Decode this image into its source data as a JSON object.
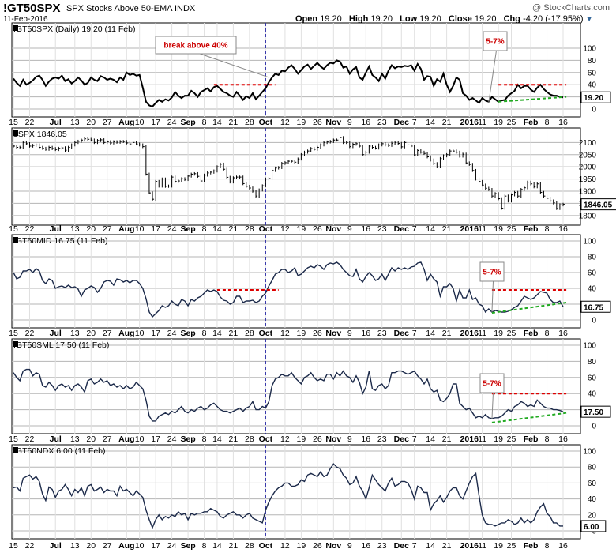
{
  "header": {
    "symbol": "!GT50SPX",
    "description": "SPX Stocks Above 50-EMA INDX",
    "date": "11-Feb-2016",
    "watermark": "@ StockCharts.com",
    "quote": {
      "open_label": "Open",
      "open": "19.20",
      "high_label": "High",
      "high": "19.20",
      "low_label": "Low",
      "low": "19.20",
      "close_label": "Close",
      "close": "19.20",
      "chg_label": "Chg",
      "chg": "-4.20 (-17.95%)"
    }
  },
  "x_labels": [
    {
      "t": "15",
      "i": 0
    },
    {
      "t": "22",
      "i": 5
    },
    {
      "t": "Jul",
      "i": 13,
      "b": true
    },
    {
      "t": "13",
      "i": 19
    },
    {
      "t": "20",
      "i": 24
    },
    {
      "t": "27",
      "i": 29
    },
    {
      "t": "Aug",
      "i": 35,
      "b": true
    },
    {
      "t": "10",
      "i": 39
    },
    {
      "t": "17",
      "i": 44
    },
    {
      "t": "24",
      "i": 49
    },
    {
      "t": "Sep",
      "i": 54,
      "b": true
    },
    {
      "t": "8",
      "i": 59
    },
    {
      "t": "14",
      "i": 63
    },
    {
      "t": "21",
      "i": 68
    },
    {
      "t": "28",
      "i": 73
    },
    {
      "t": "Oct",
      "i": 78,
      "b": true
    },
    {
      "t": "12",
      "i": 84
    },
    {
      "t": "19",
      "i": 89
    },
    {
      "t": "26",
      "i": 94
    },
    {
      "t": "Nov",
      "i": 99,
      "b": true
    },
    {
      "t": "9",
      "i": 104
    },
    {
      "t": "16",
      "i": 109
    },
    {
      "t": "23",
      "i": 114
    },
    {
      "t": "Dec",
      "i": 120,
      "b": true
    },
    {
      "t": "7",
      "i": 124
    },
    {
      "t": "14",
      "i": 129
    },
    {
      "t": "21",
      "i": 134
    },
    {
      "t": "2016",
      "i": 141,
      "b": true
    },
    {
      "t": "11",
      "i": 145
    },
    {
      "t": "19",
      "i": 150
    },
    {
      "t": "25",
      "i": 154
    },
    {
      "t": "Feb",
      "i": 160,
      "b": true
    },
    {
      "t": "8",
      "i": 165
    },
    {
      "t": "16",
      "i": 170
    }
  ],
  "marker_index": 78,
  "chart_data": [
    {
      "type": "line",
      "title": "!GT50SPX (Daily) 19.20 (11 Feb)",
      "ylim": [
        0,
        100
      ],
      "yticks": [
        0,
        20,
        40,
        60,
        80,
        100
      ],
      "last_value": "19.20",
      "annotations": [
        "break above 40%",
        "5-7%"
      ],
      "values": [
        50,
        43,
        38,
        48,
        40,
        43,
        47,
        53,
        55,
        48,
        38,
        45,
        50,
        52,
        50,
        55,
        46,
        49,
        42,
        46,
        52,
        47,
        40,
        43,
        52,
        48,
        46,
        54,
        52,
        48,
        50,
        48,
        44,
        52,
        48,
        60,
        56,
        58,
        55,
        56,
        35,
        12,
        6,
        4,
        10,
        15,
        12,
        16,
        14,
        19,
        28,
        22,
        18,
        22,
        22,
        30,
        26,
        20,
        28,
        31,
        34,
        29,
        36,
        38,
        33,
        28,
        26,
        22,
        20,
        28,
        22,
        15,
        21,
        18,
        26,
        16,
        22,
        28,
        34,
        44,
        52,
        58,
        56,
        63,
        62,
        68,
        72,
        66,
        58,
        64,
        70,
        73,
        66,
        71,
        76,
        70,
        66,
        72,
        76,
        75,
        80,
        78,
        68,
        70,
        58,
        65,
        69,
        52,
        48,
        60,
        70,
        56,
        52,
        46,
        58,
        50,
        63,
        72,
        67,
        70,
        69,
        71,
        70,
        72,
        63,
        74,
        66,
        48,
        54,
        53,
        38,
        49,
        45,
        58,
        40,
        28,
        38,
        52,
        48,
        26,
        22,
        15,
        18,
        14,
        10,
        18,
        14,
        12,
        20,
        16,
        12,
        14,
        15,
        22,
        26,
        30,
        40,
        34,
        38,
        38,
        32,
        28,
        35,
        40,
        33,
        28,
        24,
        22,
        22,
        20,
        19.2
      ]
    },
    {
      "type": "line",
      "title": "$SPX 1846.05",
      "ylim": [
        1780,
        2140
      ],
      "yticks": [
        1800,
        1850,
        1900,
        1950,
        2000,
        2050,
        2100
      ],
      "last_value": "1846.05",
      "values": [
        2085,
        2080,
        2080,
        2100,
        2095,
        2085,
        2088,
        2090,
        2080,
        2076,
        2072,
        2080,
        2075,
        2071,
        2076,
        2078,
        2068,
        2080,
        2090,
        2100,
        2105,
        2110,
        2115,
        2113,
        2110,
        2100,
        2108,
        2111,
        2100,
        2103,
        2098,
        2103,
        2101,
        2104,
        2104,
        2098,
        2094,
        2100,
        2094,
        2090,
        2083,
        1970,
        1893,
        1867,
        1940,
        1921,
        1950,
        1920,
        1921,
        1958,
        1940,
        1942,
        1951,
        1948,
        1962,
        1970,
        1972,
        1961,
        1942,
        1966,
        1975,
        1978,
        1983,
        2000,
        2011,
        1990,
        1957,
        1938,
        1955,
        1958,
        1958,
        1931,
        1920,
        1913,
        1900,
        1880,
        1905,
        1922,
        1950,
        1952,
        1985,
        1995,
        1997,
        2014,
        2017,
        2023,
        2023,
        2019,
        2032,
        2050,
        2060,
        2065,
        2075,
        2072,
        2080,
        2090,
        2100,
        2102,
        2104,
        2110,
        2110,
        2120,
        2100,
        2100,
        2083,
        2093,
        2095,
        2085,
        2050,
        2060,
        2085,
        2080,
        2077,
        2090,
        2095,
        2090,
        2088,
        2097,
        2100,
        2096,
        2082,
        2100,
        2090,
        2085,
        2049,
        2067,
        2060,
        2055,
        2041,
        2028,
        2013,
        2000,
        2034,
        2045,
        2050,
        2065,
        2065,
        2060,
        2044,
        2052,
        2016,
        2010,
        1985,
        1950,
        1940,
        1925,
        1912,
        1907,
        1880,
        1890,
        1869,
        1830,
        1880,
        1860,
        1885,
        1895,
        1880,
        1907,
        1914,
        1937,
        1930,
        1918,
        1930,
        1895,
        1880,
        1871,
        1860,
        1852,
        1829,
        1844,
        1846.05
      ]
    },
    {
      "type": "line",
      "title": "!GT50MID 16.75 (11 Feb)",
      "ylim": [
        0,
        100
      ],
      "yticks": [
        0,
        20,
        40,
        60,
        80,
        100
      ],
      "last_value": "16.75",
      "annotations": [
        "5-7%"
      ],
      "values": [
        60,
        52,
        54,
        62,
        62,
        64,
        60,
        65,
        62,
        50,
        46,
        52,
        50,
        40,
        42,
        43,
        41,
        44,
        41,
        42,
        39,
        30,
        38,
        40,
        43,
        41,
        35,
        40,
        48,
        50,
        49,
        44,
        52,
        51,
        48,
        50,
        47,
        50,
        50,
        46,
        40,
        27,
        10,
        4,
        8,
        12,
        18,
        16,
        18,
        24,
        20,
        18,
        26,
        24,
        18,
        26,
        24,
        28,
        30,
        34,
        38,
        36,
        38,
        36,
        29,
        25,
        24,
        20,
        22,
        30,
        30,
        22,
        24,
        24,
        25,
        22,
        24,
        30,
        34,
        43,
        50,
        58,
        60,
        64,
        64,
        60,
        62,
        66,
        56,
        58,
        62,
        66,
        68,
        66,
        70,
        68,
        64,
        70,
        72,
        71,
        73,
        70,
        64,
        60,
        56,
        55,
        64,
        52,
        48,
        55,
        60,
        56,
        50,
        52,
        58,
        50,
        58,
        66,
        62,
        66,
        64,
        66,
        64,
        67,
        68,
        72,
        73,
        64,
        50,
        58,
        52,
        48,
        30,
        42,
        42,
        46,
        40,
        24,
        38,
        28,
        28,
        38,
        26,
        28,
        20,
        18,
        10,
        14,
        10,
        12,
        11,
        10,
        10,
        11,
        13,
        16,
        18,
        24,
        30,
        28,
        26,
        28,
        32,
        36,
        35,
        34,
        26,
        22,
        22,
        24,
        16.75
      ]
    },
    {
      "type": "line",
      "title": "!GT50SML 17.50 (11 Feb)",
      "ylim": [
        0,
        100
      ],
      "yticks": [
        0,
        20,
        40,
        60,
        80,
        100
      ],
      "last_value": "17.50",
      "annotations": [
        "5-7%"
      ],
      "values": [
        66,
        60,
        56,
        68,
        70,
        70,
        62,
        66,
        64,
        50,
        48,
        54,
        50,
        44,
        50,
        52,
        48,
        50,
        44,
        50,
        52,
        48,
        42,
        56,
        58,
        52,
        54,
        58,
        54,
        56,
        50,
        52,
        48,
        50,
        46,
        50,
        46,
        48,
        54,
        50,
        46,
        32,
        12,
        6,
        6,
        12,
        14,
        16,
        14,
        18,
        16,
        20,
        24,
        18,
        16,
        20,
        18,
        22,
        24,
        20,
        22,
        26,
        28,
        24,
        20,
        18,
        18,
        16,
        18,
        20,
        22,
        18,
        22,
        24,
        30,
        20,
        20,
        24,
        22,
        30,
        50,
        58,
        60,
        64,
        62,
        62,
        66,
        60,
        56,
        52,
        60,
        62,
        66,
        60,
        56,
        58,
        56,
        64,
        64,
        58,
        66,
        62,
        68,
        62,
        60,
        54,
        62,
        54,
        40,
        48,
        68,
        46,
        44,
        50,
        52,
        46,
        50,
        66,
        66,
        68,
        68,
        66,
        64,
        66,
        68,
        62,
        58,
        52,
        58,
        46,
        42,
        44,
        32,
        30,
        34,
        40,
        52,
        52,
        28,
        24,
        20,
        22,
        16,
        10,
        12,
        10,
        14,
        10,
        9,
        10,
        10,
        12,
        16,
        20,
        18,
        24,
        26,
        30,
        28,
        24,
        26,
        24,
        32,
        28,
        24,
        22,
        22,
        20,
        20,
        19,
        17.5
      ]
    },
    {
      "type": "line",
      "title": "!GT50NDX 6.00 (11 Feb)",
      "ylim": [
        0,
        100
      ],
      "yticks": [
        0,
        20,
        40,
        60,
        80,
        100
      ],
      "last_value": "6.00",
      "values": [
        54,
        55,
        50,
        66,
        68,
        70,
        65,
        68,
        62,
        46,
        38,
        55,
        52,
        42,
        50,
        52,
        58,
        52,
        44,
        52,
        48,
        54,
        44,
        56,
        58,
        50,
        52,
        55,
        48,
        52,
        50,
        50,
        44,
        56,
        50,
        52,
        48,
        44,
        50,
        46,
        42,
        26,
        14,
        4,
        14,
        20,
        14,
        18,
        16,
        20,
        18,
        24,
        20,
        22,
        14,
        22,
        20,
        22,
        22,
        24,
        24,
        28,
        26,
        24,
        18,
        16,
        20,
        22,
        24,
        20,
        20,
        16,
        20,
        22,
        16,
        14,
        12,
        10,
        26,
        36,
        44,
        50,
        54,
        56,
        60,
        60,
        56,
        56,
        58,
        64,
        62,
        70,
        72,
        70,
        68,
        74,
        68,
        70,
        78,
        84,
        80,
        78,
        70,
        66,
        58,
        60,
        68,
        56,
        50,
        40,
        54,
        70,
        64,
        58,
        54,
        50,
        60,
        66,
        56,
        58,
        62,
        62,
        60,
        52,
        40,
        56,
        54,
        48,
        48,
        26,
        34,
        38,
        44,
        36,
        42,
        50,
        54,
        54,
        44,
        40,
        50,
        60,
        68,
        72,
        44,
        20,
        10,
        8,
        8,
        6,
        8,
        10,
        10,
        14,
        12,
        8,
        10,
        16,
        10,
        14,
        10,
        14,
        24,
        30,
        34,
        22,
        18,
        10,
        10,
        6,
        6
      ]
    }
  ]
}
